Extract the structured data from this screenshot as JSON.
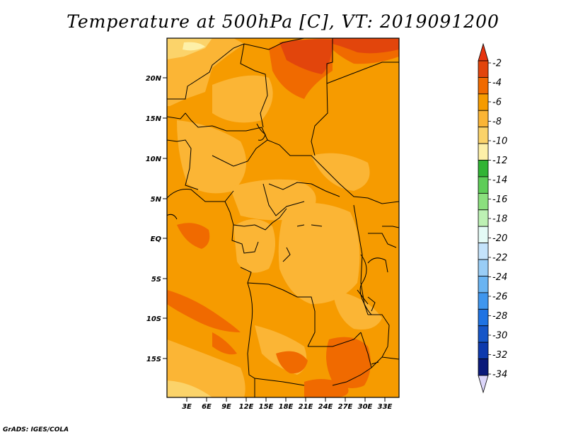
{
  "title": "Temperature at 500hPa [C], VT: 2019091200",
  "credit": "GrADS: IGES/COLA",
  "map": {
    "lat_labels": [
      "20N",
      "15N",
      "10N",
      "5N",
      "EQ",
      "5S",
      "10S",
      "15S"
    ],
    "lon_labels": [
      "3E",
      "6E",
      "9E",
      "12E",
      "15E",
      "18E",
      "21E",
      "24E",
      "27E",
      "30E",
      "33E"
    ]
  },
  "colorbar": {
    "labels": [
      "-2",
      "-4",
      "-6",
      "-8",
      "-10",
      "-12",
      "-14",
      "-16",
      "-18",
      "-20",
      "-22",
      "-24",
      "-26",
      "-28",
      "-30",
      "-32",
      "-34"
    ],
    "colors": [
      "#e2450c",
      "#f06a00",
      "#f69b00",
      "#fbb535",
      "#fbd36a",
      "#fdf0a8",
      "#31b434",
      "#5ecd58",
      "#8be07e",
      "#bdf1b4",
      "#e4fbf6",
      "#c4e3fb",
      "#99cdf6",
      "#6ab4f2",
      "#3f96ee",
      "#1f73e3",
      "#1656c8",
      "#0d3aad",
      "#0b1a7a"
    ],
    "cap_top": "#e6330e",
    "cap_bottom": "#dcd6fa"
  }
}
